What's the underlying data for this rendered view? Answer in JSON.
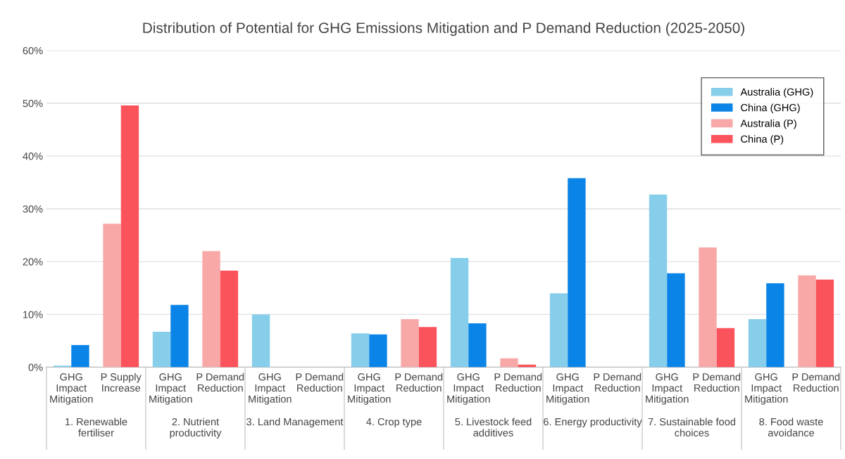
{
  "chart_data": {
    "type": "bar",
    "title": "Distribution of Potential for GHG Emissions Mitigation and P Demand Reduction (2025-2050)",
    "categories": [
      "GHG\nImpact\nMitigation",
      "P Supply\nIncrease",
      "GHG\nImpact\nMitigation",
      "P Demand\nReduction",
      "GHG\nImpact\nMitigation",
      "P Demand\nReduction",
      "GHG\nImpact\nMitigation",
      "P Demand\nReduction",
      "GHG\nImpact\nMitigation",
      "P Demand\nReduction",
      "GHG\nImpact\nMitigation",
      "P Demand\nReduction",
      "GHG\nImpact\nMitigation",
      "P Demand\nReduction",
      "GHG\nImpact\nMitigation",
      "P Demand\nReduction"
    ],
    "series": [
      {
        "name": "Australia (GHG)",
        "color": "#87ceeb",
        "values": [
          0.3,
          null,
          6.7,
          null,
          10.0,
          null,
          6.4,
          null,
          20.7,
          null,
          14.0,
          null,
          32.7,
          null,
          9.1,
          null
        ]
      },
      {
        "name": "China (GHG)",
        "color": "#0a84e6",
        "values": [
          4.2,
          null,
          11.8,
          null,
          0,
          null,
          6.2,
          null,
          8.3,
          null,
          35.8,
          null,
          17.8,
          null,
          15.9,
          null
        ]
      },
      {
        "name": "Australia (P)",
        "color": "#f9a8a8",
        "values": [
          null,
          27.2,
          null,
          22.0,
          null,
          0,
          null,
          9.1,
          null,
          1.7,
          null,
          0,
          null,
          22.7,
          null,
          17.4
        ]
      },
      {
        "name": "China (P)",
        "color": "#fb535b",
        "values": [
          null,
          49.6,
          null,
          18.3,
          null,
          0,
          null,
          7.6,
          null,
          0.5,
          null,
          0,
          null,
          7.4,
          null,
          16.6
        ]
      }
    ],
    "annotations": [
      "1. Renewable\nfertiliser",
      "2. Nutrient\nproductivity",
      "3. Land Management",
      "4. Crop type",
      "5. Livestock feed\nadditives",
      "6. Energy productivity",
      "7. Sustainable food\nchoices",
      "8. Food waste\navoidance"
    ],
    "ylim": [
      0,
      60
    ],
    "yticks": [
      {
        "value": 0,
        "label": "0%"
      },
      {
        "value": 10,
        "label": "10%"
      },
      {
        "value": 20,
        "label": "20%"
      },
      {
        "value": 30,
        "label": "30%"
      },
      {
        "value": 40,
        "label": "40%"
      },
      {
        "value": 50,
        "label": "50%"
      },
      {
        "value": 60,
        "label": "60%"
      }
    ],
    "grid": "y",
    "legend": "top right"
  }
}
